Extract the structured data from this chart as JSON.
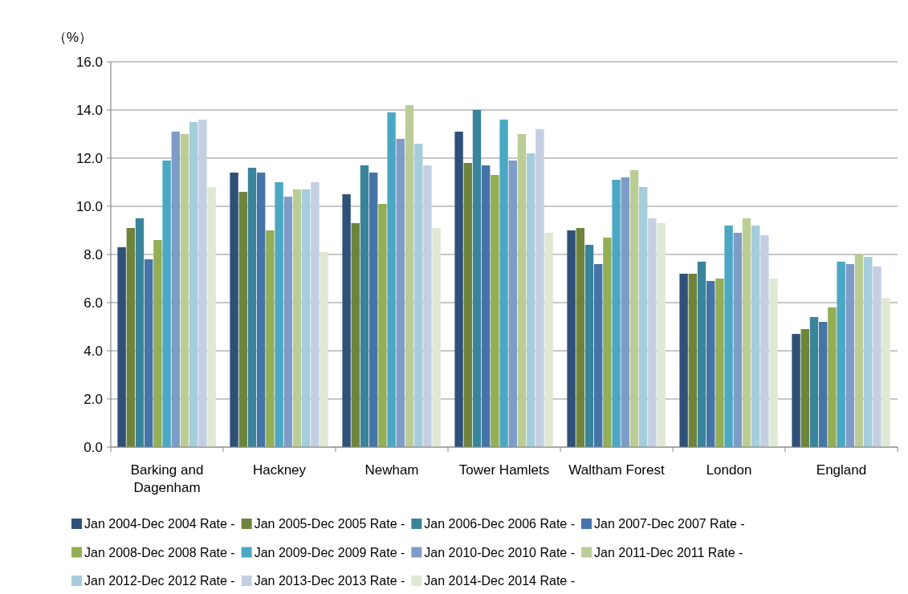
{
  "chart_data": {
    "type": "bar",
    "ylabel": "（%）",
    "categories": [
      "Barking and\nDagenham",
      "Hackney",
      "Newham",
      "Tower Hamlets",
      "Waltham Forest",
      "London",
      "England"
    ],
    "series": [
      {
        "name": "Jan 2004-Dec 2004 Rate -",
        "color": "#2f5178",
        "values": [
          8.3,
          11.4,
          10.5,
          13.1,
          9.0,
          7.2,
          4.7
        ]
      },
      {
        "name": "Jan 2005-Dec 2005 Rate -",
        "color": "#6e843d",
        "values": [
          9.1,
          10.6,
          9.3,
          11.8,
          9.1,
          7.2,
          4.9
        ]
      },
      {
        "name": "Jan 2006-Dec 2006 Rate -",
        "color": "#39849a",
        "values": [
          9.5,
          11.6,
          11.7,
          14.0,
          8.4,
          7.7,
          5.4
        ]
      },
      {
        "name": "Jan 2007-Dec 2007 Rate -",
        "color": "#4574a8",
        "values": [
          7.8,
          11.4,
          11.4,
          11.7,
          7.6,
          6.9,
          5.2
        ]
      },
      {
        "name": "Jan 2008-Dec 2008 Rate -",
        "color": "#93ae54",
        "values": [
          8.6,
          9.0,
          10.1,
          11.3,
          8.7,
          7.0,
          5.8
        ]
      },
      {
        "name": "Jan 2009-Dec 2009 Rate -",
        "color": "#4ba8c4",
        "values": [
          11.9,
          11.0,
          13.9,
          13.6,
          11.1,
          9.2,
          7.7
        ]
      },
      {
        "name": "Jan 2010-Dec 2010 Rate -",
        "color": "#7f9cc8",
        "values": [
          13.1,
          10.4,
          12.8,
          11.9,
          11.2,
          8.9,
          7.6
        ]
      },
      {
        "name": "Jan 2011-Dec 2011 Rate -",
        "color": "#bacd96",
        "values": [
          13.0,
          10.7,
          14.2,
          13.0,
          11.5,
          9.5,
          8.0
        ]
      },
      {
        "name": "Jan 2012-Dec 2012 Rate -",
        "color": "#a5cddc",
        "values": [
          13.5,
          10.7,
          12.6,
          12.2,
          10.8,
          9.2,
          7.9
        ]
      },
      {
        "name": "Jan 2013-Dec 2013 Rate -",
        "color": "#c4cfe3",
        "values": [
          13.6,
          11.0,
          11.7,
          13.2,
          9.5,
          8.8,
          7.5
        ]
      },
      {
        "name": "Jan 2014-Dec 2014 Rate -",
        "color": "#dfe8d3",
        "values": [
          10.8,
          8.1,
          9.1,
          8.9,
          9.3,
          7.0,
          6.2
        ]
      }
    ],
    "ylim": [
      0,
      16
    ],
    "yticks": [
      {
        "value": 0,
        "label": "0.0"
      },
      {
        "value": 2,
        "label": "2.0"
      },
      {
        "value": 4,
        "label": "4.0"
      },
      {
        "value": 6,
        "label": "6.0"
      },
      {
        "value": 8,
        "label": "8.0"
      },
      {
        "value": 10,
        "label": "10.0"
      },
      {
        "value": 12,
        "label": "12.0"
      },
      {
        "value": 14,
        "label": "14.0"
      },
      {
        "value": 16,
        "label": "16.0"
      }
    ],
    "grid": "y",
    "legend": "bottom"
  }
}
